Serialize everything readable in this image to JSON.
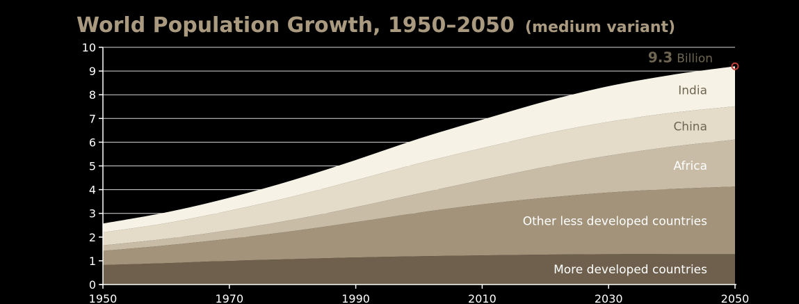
{
  "chart_data": {
    "type": "area",
    "title": "World Population Growth, 1950–2050",
    "subtitle": "(medium variant)",
    "xlabel": "",
    "ylabel": "",
    "x": [
      1950,
      1960,
      1970,
      1980,
      1990,
      2000,
      2010,
      2020,
      2030,
      2040,
      2050
    ],
    "xticks": [
      "1950",
      "1970",
      "1990",
      "2010",
      "2030",
      "2050"
    ],
    "yticks": [
      "0",
      "1",
      "2",
      "3",
      "4",
      "5",
      "6",
      "7",
      "8",
      "9",
      "10"
    ],
    "xlim": [
      1950,
      2050
    ],
    "ylim": [
      0,
      10
    ],
    "grid": true,
    "stacked": true,
    "series": [
      {
        "name": "More developed countries",
        "color": "#6e604c",
        "values": [
          0.82,
          0.9,
          1.0,
          1.07,
          1.14,
          1.19,
          1.23,
          1.26,
          1.28,
          1.28,
          1.28
        ]
      },
      {
        "name": "Other less developed countries",
        "color": "#a2937a",
        "values": [
          0.6,
          0.75,
          0.93,
          1.18,
          1.49,
          1.84,
          2.15,
          2.4,
          2.6,
          2.75,
          2.85
        ]
      },
      {
        "name": "Africa",
        "color": "#c8bca6",
        "values": [
          0.23,
          0.28,
          0.36,
          0.48,
          0.63,
          0.81,
          1.03,
          1.3,
          1.55,
          1.78,
          1.98
        ]
      },
      {
        "name": "China",
        "color": "#e4dcc9",
        "values": [
          0.55,
          0.66,
          0.82,
          0.98,
          1.14,
          1.27,
          1.34,
          1.4,
          1.43,
          1.43,
          1.4
        ]
      },
      {
        "name": "India",
        "color": "#f6f2e6",
        "values": [
          0.37,
          0.45,
          0.55,
          0.69,
          0.85,
          1.04,
          1.2,
          1.36,
          1.5,
          1.6,
          1.69
        ]
      }
    ],
    "annotation": {
      "value": "9.3",
      "unit": "Billion",
      "x": 2050,
      "y": 9.2,
      "marker_color": "#c0403a"
    },
    "colors": {
      "title": "#a99a80",
      "axis": "#ffffff",
      "label_dark": "#6e6552",
      "label_light": "#ffffff"
    }
  }
}
